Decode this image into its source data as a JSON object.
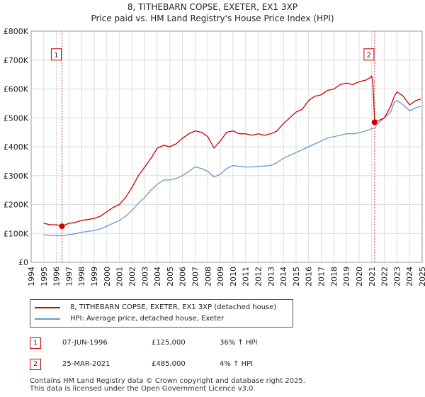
{
  "title_line1": "8, TITHEBARN COPSE, EXETER, EX1 3XP",
  "title_line2": "Price paid vs. HM Land Registry's House Price Index (HPI)",
  "colors": {
    "property": "#cc0000",
    "hpi": "#6699cc",
    "marker_line": "#cc0000",
    "future_hatch": "#cccccc"
  },
  "legend": {
    "property_label": "8, TITHEBARN COPSE, EXETER, EX1 3XP (detached house)",
    "hpi_label": "HPI: Average price, detached house, Exeter"
  },
  "transactions": [
    {
      "num": "1",
      "date": "07-JUN-1996",
      "price": "£125,000",
      "hpi_change": "36% ↑ HPI"
    },
    {
      "num": "2",
      "date": "25-MAR-2021",
      "price": "£485,000",
      "hpi_change": "4% ↑ HPI"
    }
  ],
  "footer_line1": "Contains HM Land Registry data © Crown copyright and database right 2025.",
  "footer_line2": "This data is licensed under the Open Government Licence v3.0.",
  "chart_data": {
    "type": "line",
    "title": "8, TITHEBARN COPSE, EXETER, EX1 3XP — Price paid vs. HM Land Registry's House Price Index (HPI)",
    "xlabel": "",
    "ylabel": "",
    "xlim": [
      1994,
      2025
    ],
    "ylim": [
      0,
      800000
    ],
    "y_ticks": [
      0,
      100000,
      200000,
      300000,
      400000,
      500000,
      600000,
      700000,
      800000
    ],
    "y_tick_labels": [
      "£0",
      "£100K",
      "£200K",
      "£300K",
      "£400K",
      "£500K",
      "£600K",
      "£700K",
      "£800K"
    ],
    "x_ticks": [
      1994,
      1995,
      1996,
      1997,
      1998,
      1999,
      2000,
      2001,
      2002,
      2003,
      2004,
      2005,
      2006,
      2007,
      2008,
      2009,
      2010,
      2011,
      2012,
      2013,
      2014,
      2015,
      2016,
      2017,
      2018,
      2019,
      2020,
      2021,
      2022,
      2023,
      2024,
      2025
    ],
    "x_tick_labels": [
      "1994",
      "1995",
      "1996",
      "1997",
      "1998",
      "1999",
      "2000",
      "2001",
      "2002",
      "2003",
      "2004",
      "2005",
      "2006",
      "2007",
      "2008",
      "2009",
      "2010",
      "2011",
      "2012",
      "2013",
      "2014",
      "2015",
      "2016",
      "2017",
      "2018",
      "2019",
      "2020",
      "2021",
      "2022",
      "2023",
      "2024",
      "2025"
    ],
    "grid": true,
    "future_hatch_from": 2024.9,
    "series": [
      {
        "name": "8, TITHEBARN COPSE, EXETER, EX1 3XP (detached house)",
        "color": "#cc0000",
        "x": [
          1995.0,
          1995.5,
          1996.0,
          1996.44,
          1997.0,
          1997.5,
          1998.0,
          1998.5,
          1999.0,
          1999.5,
          2000.0,
          2000.5,
          2001.0,
          2001.5,
          2002.0,
          2002.5,
          2003.0,
          2003.5,
          2004.0,
          2004.5,
          2005.0,
          2005.5,
          2006.0,
          2006.5,
          2007.0,
          2007.5,
          2008.0,
          2008.5,
          2009.0,
          2009.5,
          2010.0,
          2010.5,
          2011.0,
          2011.5,
          2012.0,
          2012.5,
          2013.0,
          2013.5,
          2014.0,
          2014.5,
          2015.0,
          2015.5,
          2016.0,
          2016.5,
          2017.0,
          2017.5,
          2018.0,
          2018.5,
          2019.0,
          2019.5,
          2020.0,
          2020.5,
          2020.9,
          2021.0,
          2021.1,
          2021.23,
          2021.5,
          2022.0,
          2022.5,
          2022.8,
          2023.0,
          2023.5,
          2024.0,
          2024.5,
          2024.9
        ],
        "y": [
          135000,
          130000,
          130000,
          125000,
          135000,
          138000,
          145000,
          148000,
          152000,
          160000,
          175000,
          190000,
          200000,
          225000,
          260000,
          300000,
          330000,
          360000,
          395000,
          405000,
          400000,
          410000,
          430000,
          445000,
          455000,
          450000,
          435000,
          395000,
          420000,
          450000,
          455000,
          445000,
          445000,
          440000,
          445000,
          440000,
          445000,
          455000,
          480000,
          500000,
          520000,
          530000,
          560000,
          575000,
          580000,
          595000,
          600000,
          615000,
          620000,
          615000,
          625000,
          630000,
          640000,
          645000,
          615000,
          485000,
          490000,
          500000,
          540000,
          575000,
          590000,
          575000,
          545000,
          560000,
          565000
        ]
      },
      {
        "name": "HPI: Average price, detached house, Exeter",
        "color": "#6699cc",
        "x": [
          1995.0,
          1995.5,
          1996.0,
          1996.44,
          1997.0,
          1997.5,
          1998.0,
          1998.5,
          1999.0,
          1999.5,
          2000.0,
          2000.5,
          2001.0,
          2001.5,
          2002.0,
          2002.5,
          2003.0,
          2003.5,
          2004.0,
          2004.5,
          2005.0,
          2005.5,
          2006.0,
          2006.5,
          2007.0,
          2007.5,
          2008.0,
          2008.5,
          2009.0,
          2009.5,
          2010.0,
          2010.5,
          2011.0,
          2011.5,
          2012.0,
          2012.5,
          2013.0,
          2013.5,
          2014.0,
          2014.5,
          2015.0,
          2015.5,
          2016.0,
          2016.5,
          2017.0,
          2017.5,
          2018.0,
          2018.5,
          2019.0,
          2019.5,
          2020.0,
          2020.5,
          2021.0,
          2021.23,
          2021.5,
          2022.0,
          2022.5,
          2022.8,
          2023.0,
          2023.5,
          2024.0,
          2024.5,
          2024.9
        ],
        "y": [
          95000,
          93000,
          92000,
          92000,
          96000,
          99000,
          104000,
          107000,
          110000,
          116000,
          125000,
          135000,
          145000,
          160000,
          180000,
          205000,
          225000,
          250000,
          270000,
          285000,
          285000,
          290000,
          300000,
          315000,
          330000,
          325000,
          315000,
          295000,
          305000,
          325000,
          335000,
          332000,
          330000,
          330000,
          332000,
          333000,
          335000,
          345000,
          360000,
          370000,
          380000,
          390000,
          400000,
          410000,
          420000,
          430000,
          435000,
          440000,
          445000,
          445000,
          448000,
          455000,
          462000,
          465000,
          480000,
          500000,
          520000,
          555000,
          560000,
          545000,
          525000,
          535000,
          540000
        ]
      }
    ],
    "annotations": [
      {
        "label": "1",
        "x": 1996.44,
        "y": 125000
      },
      {
        "label": "2",
        "x": 2021.23,
        "y": 485000
      }
    ]
  }
}
